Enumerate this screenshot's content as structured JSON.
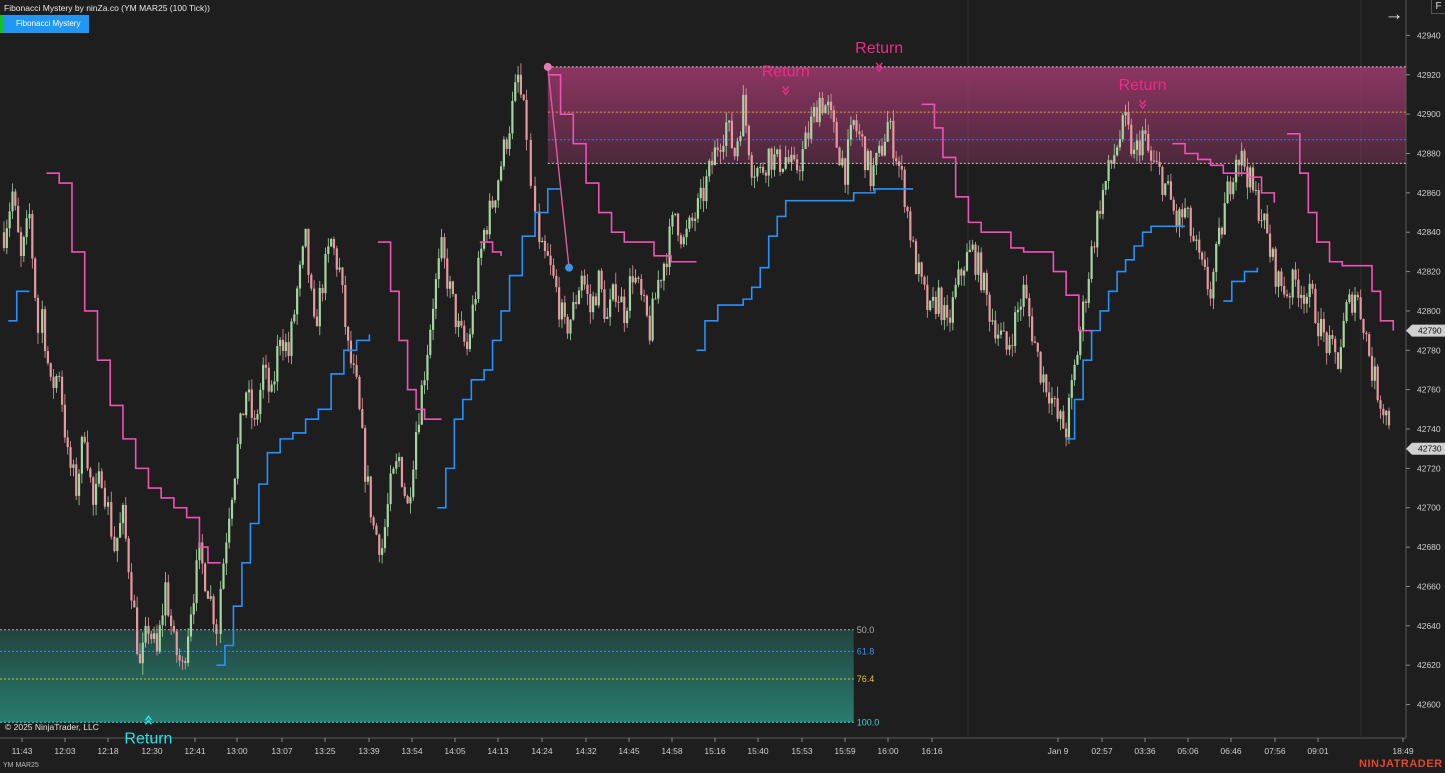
{
  "header": {
    "title": "Fibonacci Mystery by ninZa.co (YM MAR25 (100 Tick))",
    "indicator_button": "Fibonacci Mystery",
    "f_button": "F"
  },
  "footer": {
    "copyright": "© 2025 NinjaTrader, LLC",
    "symbol": "YM MAR25",
    "brand": "NINJATRADER"
  },
  "colors": {
    "background": "#1e1e1e",
    "bull_candle": "#a4d6a0",
    "bear_candle": "#e59aa0",
    "trail_upper": "#f052b5",
    "trail_lower": "#2592ff",
    "upper_zone": "#a03a6e",
    "lower_zone": "#2a8c7c",
    "return_upper": "#ee2b86",
    "return_lower": "#25e3ea",
    "price_marker": "#d0d0d0"
  },
  "chart_data": {
    "type": "candlestick",
    "title": "Fibonacci Mystery by ninZa.co (YM MAR25 (100 Tick))",
    "y_axis": {
      "range": [
        42583,
        42958
      ],
      "ticks": [
        42940,
        42920,
        42900,
        42880,
        42860,
        42840,
        42820,
        42800,
        42780,
        42760,
        42740,
        42720,
        42700,
        42680,
        42660,
        42640,
        42620,
        42600
      ],
      "current_price_labels": [
        42790,
        42730
      ]
    },
    "x_axis": {
      "ticks": [
        "11:43",
        "12:03",
        "12:18",
        "12:30",
        "12:41",
        "13:00",
        "13:07",
        "13:25",
        "13:39",
        "13:54",
        "14:05",
        "14:13",
        "14:24",
        "14:32",
        "14:45",
        "14:58",
        "15:16",
        "15:40",
        "15:53",
        "15:59",
        "16:00",
        "16:16",
        "Jan 9",
        "02:57",
        "03:36",
        "05:06",
        "06:46",
        "07:56",
        "09:01",
        "18:49"
      ]
    },
    "price_path": [
      [
        0,
        42840
      ],
      [
        2,
        42860
      ],
      [
        4,
        42825
      ],
      [
        6,
        42848
      ],
      [
        8,
        42790
      ],
      [
        9,
        42800
      ],
      [
        11,
        42760
      ],
      [
        13,
        42770
      ],
      [
        15,
        42725
      ],
      [
        17,
        42710
      ],
      [
        19,
        42740
      ],
      [
        21,
        42700
      ],
      [
        23,
        42718
      ],
      [
        26,
        42680
      ],
      [
        28,
        42695
      ],
      [
        30,
        42660
      ],
      [
        32,
        42618
      ],
      [
        34,
        42640
      ],
      [
        36,
        42625
      ],
      [
        38,
        42660
      ],
      [
        40,
        42630
      ],
      [
        42,
        42618
      ],
      [
        44,
        42650
      ],
      [
        46,
        42675
      ],
      [
        48,
        42660
      ],
      [
        50,
        42640
      ],
      [
        51,
        42660
      ],
      [
        53,
        42700
      ],
      [
        55,
        42730
      ],
      [
        57,
        42760
      ],
      [
        59,
        42740
      ],
      [
        61,
        42770
      ],
      [
        63,
        42755
      ],
      [
        65,
        42790
      ],
      [
        67,
        42778
      ],
      [
        69,
        42810
      ],
      [
        71,
        42835
      ],
      [
        73,
        42790
      ],
      [
        75,
        42815
      ],
      [
        77,
        42835
      ],
      [
        79,
        42820
      ],
      [
        81,
        42780
      ],
      [
        83,
        42760
      ],
      [
        85,
        42720
      ],
      [
        87,
        42690
      ],
      [
        89,
        42680
      ],
      [
        91,
        42710
      ],
      [
        93,
        42725
      ],
      [
        95,
        42700
      ],
      [
        97,
        42740
      ],
      [
        99,
        42770
      ],
      [
        101,
        42805
      ],
      [
        103,
        42830
      ],
      [
        105,
        42810
      ],
      [
        107,
        42790
      ],
      [
        109,
        42780
      ],
      [
        111,
        42810
      ],
      [
        113,
        42840
      ],
      [
        115,
        42855
      ],
      [
        117,
        42875
      ],
      [
        119,
        42895
      ],
      [
        121,
        42918
      ],
      [
        123,
        42890
      ],
      [
        124,
        42860
      ],
      [
        125,
        42850
      ],
      [
        126,
        42830
      ],
      [
        128,
        42825
      ],
      [
        130,
        42810
      ],
      [
        132,
        42790
      ],
      [
        134,
        42800
      ],
      [
        136,
        42820
      ],
      [
        138,
        42800
      ],
      [
        140,
        42815
      ],
      [
        142,
        42795
      ],
      [
        144,
        42812
      ],
      [
        146,
        42800
      ],
      [
        148,
        42820
      ],
      [
        150,
        42805
      ],
      [
        152,
        42790
      ],
      [
        154,
        42815
      ],
      [
        156,
        42830
      ],
      [
        158,
        42850
      ],
      [
        160,
        42835
      ],
      [
        162,
        42845
      ],
      [
        164,
        42855
      ],
      [
        166,
        42870
      ],
      [
        168,
        42885
      ],
      [
        170,
        42895
      ],
      [
        172,
        42880
      ],
      [
        174,
        42905
      ],
      [
        176,
        42875
      ],
      [
        178,
        42870
      ],
      [
        180,
        42880
      ],
      [
        182,
        42875
      ],
      [
        184,
        42878
      ],
      [
        186,
        42870
      ],
      [
        188,
        42880
      ],
      [
        190,
        42895
      ],
      [
        192,
        42908
      ],
      [
        194,
        42902
      ],
      [
        196,
        42885
      ],
      [
        198,
        42872
      ],
      [
        200,
        42895
      ],
      [
        202,
        42885
      ],
      [
        204,
        42868
      ],
      [
        206,
        42878
      ],
      [
        208,
        42895
      ],
      [
        210,
        42880
      ],
      [
        212,
        42860
      ],
      [
        214,
        42830
      ],
      [
        216,
        42812
      ],
      [
        218,
        42798
      ],
      [
        220,
        42808
      ],
      [
        222,
        42790
      ],
      [
        224,
        42810
      ],
      [
        226,
        42825
      ],
      [
        228,
        42830
      ],
      [
        230,
        42818
      ],
      [
        232,
        42800
      ],
      [
        234,
        42790
      ],
      [
        236,
        42780
      ],
      [
        238,
        42795
      ],
      [
        240,
        42810
      ],
      [
        242,
        42790
      ],
      [
        244,
        42770
      ],
      [
        246,
        42760
      ],
      [
        248,
        42745
      ],
      [
        250,
        42740
      ],
      [
        252,
        42770
      ],
      [
        254,
        42800
      ],
      [
        256,
        42830
      ],
      [
        258,
        42855
      ],
      [
        260,
        42870
      ],
      [
        262,
        42885
      ],
      [
        264,
        42895
      ],
      [
        266,
        42878
      ],
      [
        268,
        42890
      ],
      [
        270,
        42875
      ],
      [
        272,
        42870
      ],
      [
        274,
        42860
      ],
      [
        276,
        42845
      ],
      [
        278,
        42850
      ],
      [
        280,
        42835
      ],
      [
        282,
        42820
      ],
      [
        284,
        42810
      ],
      [
        286,
        42835
      ],
      [
        288,
        42860
      ],
      [
        290,
        42880
      ],
      [
        292,
        42875
      ],
      [
        294,
        42860
      ],
      [
        296,
        42850
      ],
      [
        298,
        42830
      ],
      [
        300,
        42815
      ],
      [
        302,
        42810
      ],
      [
        304,
        42815
      ],
      [
        306,
        42810
      ],
      [
        308,
        42805
      ],
      [
        310,
        42790
      ],
      [
        312,
        42780
      ],
      [
        314,
        42775
      ],
      [
        316,
        42800
      ],
      [
        318,
        42810
      ],
      [
        320,
        42795
      ],
      [
        322,
        42770
      ],
      [
        324,
        42755
      ],
      [
        326,
        42745
      ],
      [
        327,
        42730
      ]
    ],
    "trailing_upper": [
      [
        10,
        42870
      ],
      [
        13,
        42865
      ],
      [
        16,
        42830
      ],
      [
        19,
        42800
      ],
      [
        22,
        42775
      ],
      [
        25,
        42752
      ],
      [
        28,
        42735
      ],
      [
        31,
        42720
      ],
      [
        34,
        42710
      ],
      [
        37,
        42705
      ],
      [
        40,
        42700
      ],
      [
        43,
        42695
      ],
      [
        46,
        42680
      ],
      [
        48,
        42672
      ],
      [
        51,
        42672
      ],
      null,
      [
        88,
        42835
      ],
      [
        91,
        42810
      ],
      [
        93,
        42785
      ],
      [
        95,
        42760
      ],
      [
        97,
        42750
      ],
      [
        99,
        42745
      ],
      [
        101,
        42745
      ],
      [
        103,
        42745
      ],
      null,
      [
        112,
        42835
      ],
      [
        115,
        42830
      ],
      [
        117,
        42828
      ],
      null,
      [
        128,
        42920
      ],
      [
        131,
        42900
      ],
      [
        134,
        42885
      ],
      [
        137,
        42865
      ],
      [
        140,
        42850
      ],
      [
        143,
        42840
      ],
      [
        146,
        42835
      ],
      [
        150,
        42835
      ],
      [
        153,
        42828
      ],
      [
        157,
        42825
      ],
      [
        160,
        42825
      ],
      [
        163,
        42825
      ],
      null,
      [
        216,
        42905
      ],
      [
        219,
        42893
      ],
      [
        221,
        42878
      ],
      [
        224,
        42858
      ],
      [
        227,
        42845
      ],
      [
        230,
        42840
      ],
      [
        234,
        42840
      ],
      [
        237,
        42832
      ],
      [
        240,
        42830
      ],
      [
        243,
        42830
      ],
      [
        247,
        42820
      ],
      [
        250,
        42808
      ],
      [
        253,
        42790
      ],
      [
        256,
        42788
      ],
      null,
      [
        275,
        42885
      ],
      [
        278,
        42880
      ],
      [
        281,
        42877
      ],
      [
        284,
        42874
      ],
      [
        287,
        42870
      ],
      [
        290,
        42870
      ],
      [
        293,
        42868
      ],
      [
        296,
        42860
      ],
      [
        299,
        42855
      ],
      null,
      [
        302,
        42890
      ],
      [
        305,
        42870
      ],
      [
        307,
        42850
      ],
      [
        309,
        42835
      ],
      [
        312,
        42825
      ],
      [
        315,
        42823
      ],
      [
        319,
        42823
      ],
      [
        322,
        42810
      ],
      [
        324,
        42795
      ],
      [
        327,
        42790
      ]
    ],
    "trailing_lower": [
      [
        1,
        42795
      ],
      [
        3,
        42810
      ],
      [
        6,
        42810
      ],
      null,
      [
        50,
        42620
      ],
      [
        52,
        42630
      ],
      [
        54,
        42650
      ],
      [
        56,
        42672
      ],
      [
        58,
        42692
      ],
      [
        60,
        42712
      ],
      [
        62,
        42728
      ],
      [
        65,
        42735
      ],
      [
        68,
        42738
      ],
      [
        71,
        42745
      ],
      [
        74,
        42750
      ],
      [
        77,
        42768
      ],
      [
        80,
        42780
      ],
      [
        83,
        42785
      ],
      [
        86,
        42788
      ],
      null,
      [
        102,
        42700
      ],
      [
        104,
        42720
      ],
      [
        106,
        42745
      ],
      [
        108,
        42755
      ],
      [
        110,
        42765
      ],
      [
        113,
        42770
      ],
      [
        115,
        42785
      ],
      [
        117,
        42800
      ],
      [
        119,
        42818
      ],
      [
        122,
        42838
      ],
      [
        125,
        42850
      ],
      [
        128,
        42862
      ],
      [
        131,
        42862
      ],
      null,
      [
        163,
        42780
      ],
      [
        165,
        42795
      ],
      [
        168,
        42803
      ],
      [
        171,
        42803
      ],
      [
        174,
        42806
      ],
      [
        176,
        42812
      ],
      [
        178,
        42822
      ],
      [
        180,
        42838
      ],
      [
        182,
        42848
      ],
      [
        184,
        42856
      ],
      [
        186,
        42856
      ],
      [
        190,
        42856
      ],
      [
        195,
        42856
      ],
      [
        200,
        42860
      ],
      [
        205,
        42862
      ],
      [
        210,
        42862
      ],
      [
        214,
        42862
      ],
      null,
      [
        250,
        42735
      ],
      [
        252,
        42755
      ],
      [
        254,
        42775
      ],
      [
        256,
        42790
      ],
      [
        258,
        42800
      ],
      [
        260,
        42810
      ],
      [
        262,
        42820
      ],
      [
        264,
        42826
      ],
      [
        266,
        42833
      ],
      [
        268,
        42840
      ],
      [
        270,
        42843
      ],
      [
        274,
        42843
      ],
      [
        278,
        42843
      ],
      null,
      [
        287,
        42805
      ],
      [
        289,
        42815
      ],
      [
        292,
        42820
      ],
      [
        295,
        42822
      ]
    ],
    "swing_points": [
      {
        "role": "high",
        "x": 128,
        "y": 42924
      },
      {
        "role": "low",
        "x": 133,
        "y": 42822
      }
    ],
    "upper_zone": {
      "x_start": 128,
      "x_end": 330,
      "top": 42924,
      "bottom": 42875
    },
    "upper_levels": [
      {
        "value": 42924,
        "color": "#c9c9c9"
      },
      {
        "value": 42901,
        "color": "#f0a020"
      },
      {
        "value": 42887,
        "color": "#3a7bff"
      },
      {
        "value": 42875,
        "color": "#c9c9c9"
      }
    ],
    "lower_zone": {
      "x_start": 0,
      "x_end": 200,
      "top": 42638,
      "bottom": 42591
    },
    "lower_levels": [
      {
        "label": "50.0",
        "value": 42638,
        "color": "#aaaaaa"
      },
      {
        "label": "61.8",
        "value": 42627,
        "color": "#3a8ef0"
      },
      {
        "label": "76.4",
        "value": 42613,
        "color": "#e6c33a"
      },
      {
        "label": "100.0",
        "value": 42591,
        "color": "#37d8e0"
      }
    ],
    "return_signals": [
      {
        "label": "Return",
        "x": 184,
        "y": 42910,
        "direction": "down",
        "color": "#ee2b86"
      },
      {
        "label": "Return",
        "x": 206,
        "y": 42922,
        "direction": "down",
        "color": "#ee2b86"
      },
      {
        "label": "Return",
        "x": 268,
        "y": 42903,
        "direction": "down",
        "color": "#ee2b86"
      },
      {
        "label": "Return",
        "x": 34,
        "y": 42594,
        "direction": "up",
        "color": "#25e3ea"
      }
    ]
  }
}
